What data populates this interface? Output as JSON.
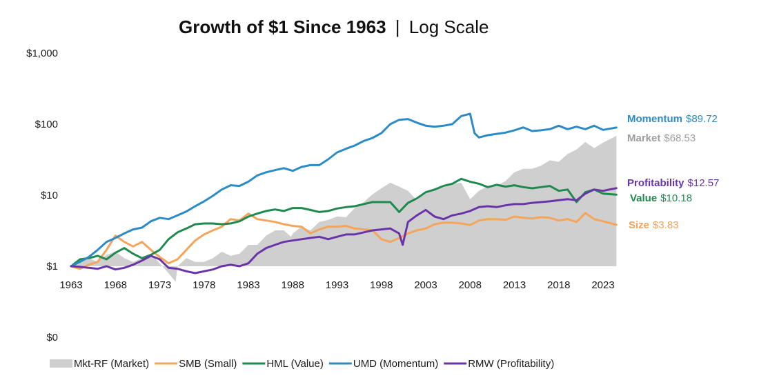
{
  "chart_data": {
    "type": "line",
    "title": "Growth of $1 Since 1963",
    "subtitle": "Log Scale",
    "title_separator": "|",
    "xlabel": "",
    "ylabel": "",
    "yscale": "log",
    "ylim": [
      1,
      1000
    ],
    "xlim": [
      1963,
      2024.5
    ],
    "y_ticks": [
      {
        "value": 1000,
        "label": "$1,000"
      },
      {
        "value": 100,
        "label": "$100"
      },
      {
        "value": 10,
        "label": "$10"
      },
      {
        "value": 1,
        "label": "$1"
      },
      {
        "value": 0,
        "label": "$0"
      }
    ],
    "x_ticks": [
      "1963",
      "1968",
      "1973",
      "1978",
      "1983",
      "1988",
      "1993",
      "1998",
      "2003",
      "2008",
      "2013",
      "2018",
      "2023"
    ],
    "grid": false,
    "legend_position": "bottom",
    "series": [
      {
        "key": "market",
        "name": "Mkt-RF (Market)",
        "short_name": "Market",
        "kind": "area",
        "color": "#cfcfcf",
        "label_color": "#9e9e9e",
        "end_value": "$68.53",
        "x": [
          1963,
          1964,
          1965,
          1966,
          1967,
          1968,
          1969,
          1970,
          1971,
          1972,
          1973,
          1974,
          1974.8,
          1975,
          1976,
          1977,
          1978,
          1979,
          1980,
          1981,
          1982,
          1983,
          1984,
          1985,
          1986,
          1987,
          1987.8,
          1988,
          1989,
          1990,
          1991,
          1992,
          1993,
          1994,
          1995,
          1996,
          1997,
          1998,
          1999,
          2000,
          2001,
          2002,
          2003,
          2004,
          2005,
          2006,
          2007,
          2008,
          2009,
          2010,
          2011,
          2012,
          2013,
          2014,
          2015,
          2016,
          2017,
          2018,
          2019,
          2020,
          2021,
          2022,
          2023,
          2024.5
        ],
        "values": [
          1.0,
          1.15,
          1.3,
          1.15,
          1.45,
          1.6,
          1.3,
          1.15,
          1.3,
          1.5,
          1.1,
          0.8,
          0.6,
          1.0,
          1.3,
          1.15,
          1.15,
          1.3,
          1.6,
          1.4,
          1.5,
          2.0,
          2.0,
          2.7,
          3.2,
          3.2,
          2.6,
          2.9,
          3.6,
          3.2,
          4.2,
          4.5,
          5.0,
          4.9,
          6.6,
          8.0,
          10.3,
          12.5,
          15.0,
          13.2,
          11.5,
          8.5,
          11.0,
          12.2,
          12.8,
          14.5,
          15.0,
          8.8,
          11.5,
          13.5,
          13.5,
          15.8,
          21.0,
          23.5,
          23.5,
          26.0,
          31.0,
          29.5,
          38.0,
          44.0,
          56.0,
          46.0,
          55.0,
          68.53
        ]
      },
      {
        "key": "size",
        "name": "SMB (Small)",
        "short_name": "Size",
        "kind": "line",
        "color": "#f5a55a",
        "label_color": "#f3a35c",
        "end_value": "$3.83",
        "x": [
          1963,
          1964,
          1965,
          1966,
          1967,
          1968,
          1969,
          1970,
          1971,
          1972,
          1973,
          1974,
          1975,
          1976,
          1977,
          1978,
          1979,
          1980,
          1981,
          1982,
          1983,
          1984,
          1985,
          1986,
          1987,
          1988,
          1989,
          1990,
          1991,
          1992,
          1993,
          1994,
          1995,
          1996,
          1997,
          1998,
          1999,
          2000,
          2001,
          2002,
          2003,
          2004,
          2005,
          2006,
          2007,
          2008,
          2009,
          2010,
          2011,
          2012,
          2013,
          2014,
          2015,
          2016,
          2017,
          2018,
          2019,
          2020,
          2021,
          2022,
          2023,
          2024.5
        ],
        "values": [
          1.0,
          0.92,
          1.05,
          1.15,
          1.7,
          2.7,
          2.2,
          1.9,
          2.2,
          1.7,
          1.35,
          1.1,
          1.25,
          1.7,
          2.3,
          2.8,
          3.2,
          3.6,
          4.6,
          4.4,
          5.5,
          4.6,
          4.4,
          4.2,
          3.9,
          3.7,
          3.6,
          2.9,
          3.3,
          3.6,
          3.6,
          3.7,
          3.4,
          3.3,
          3.2,
          2.4,
          2.2,
          2.5,
          2.9,
          3.2,
          3.4,
          3.9,
          4.1,
          4.1,
          4.0,
          3.8,
          4.4,
          4.6,
          4.6,
          4.5,
          5.0,
          4.8,
          4.7,
          4.9,
          4.8,
          4.4,
          4.6,
          4.2,
          5.6,
          4.6,
          4.3,
          3.83
        ]
      },
      {
        "key": "value",
        "name": "HML (Value)",
        "short_name": "Value",
        "kind": "line",
        "color": "#1e8a4e",
        "label_color": "#1e8a4e",
        "end_value": "$10.18",
        "x": [
          1963,
          1964,
          1965,
          1966,
          1967,
          1968,
          1969,
          1970,
          1971,
          1972,
          1973,
          1974,
          1975,
          1976,
          1977,
          1978,
          1979,
          1980,
          1981,
          1982,
          1983,
          1984,
          1985,
          1986,
          1987,
          1988,
          1989,
          1990,
          1991,
          1992,
          1993,
          1994,
          1995,
          1996,
          1997,
          1998,
          1999,
          2000,
          2001,
          2002,
          2003,
          2004,
          2005,
          2006,
          2007,
          2008,
          2009,
          2010,
          2011,
          2012,
          2013,
          2014,
          2015,
          2016,
          2017,
          2018,
          2019,
          2020,
          2021,
          2022,
          2023,
          2024.5
        ],
        "values": [
          1.0,
          1.25,
          1.3,
          1.4,
          1.25,
          1.55,
          1.8,
          1.5,
          1.3,
          1.45,
          1.7,
          2.4,
          3.0,
          3.4,
          3.9,
          4.0,
          4.0,
          3.9,
          4.0,
          4.3,
          5.0,
          5.5,
          6.0,
          6.3,
          6.0,
          6.6,
          6.6,
          6.2,
          5.8,
          6.0,
          6.5,
          6.8,
          7.0,
          7.5,
          8.0,
          8.0,
          8.0,
          5.8,
          7.8,
          9.0,
          11.0,
          12.0,
          13.5,
          14.5,
          17.0,
          15.5,
          14.5,
          13.0,
          14.0,
          13.2,
          13.8,
          13.0,
          12.5,
          13.0,
          13.5,
          11.5,
          12.0,
          8.0,
          11.0,
          12.0,
          10.5,
          10.18
        ]
      },
      {
        "key": "momentum",
        "name": "UMD (Momentum)",
        "short_name": "Momentum",
        "kind": "line",
        "color": "#2a8bc7",
        "label_color": "#2a8bc7",
        "end_value": "$89.72",
        "x": [
          1963,
          1964,
          1965,
          1966,
          1967,
          1968,
          1969,
          1970,
          1971,
          1972,
          1973,
          1974,
          1975,
          1976,
          1977,
          1978,
          1979,
          1980,
          1981,
          1982,
          1983,
          1984,
          1985,
          1986,
          1987,
          1988,
          1989,
          1990,
          1991,
          1992,
          1993,
          1994,
          1995,
          1996,
          1997,
          1998,
          1999,
          2000,
          2001,
          2002,
          2003,
          2004,
          2005,
          2006,
          2007,
          2008,
          2008.5,
          2009,
          2010,
          2011,
          2012,
          2013,
          2014,
          2015,
          2016,
          2017,
          2018,
          2019,
          2020,
          2021,
          2022,
          2023,
          2024.5
        ],
        "values": [
          1.0,
          1.15,
          1.35,
          1.7,
          2.2,
          2.5,
          2.9,
          3.3,
          3.5,
          4.3,
          4.8,
          4.6,
          5.2,
          5.9,
          7.0,
          8.2,
          9.8,
          12.0,
          13.8,
          13.5,
          15.5,
          19.0,
          21.0,
          22.5,
          24.0,
          22.0,
          25.0,
          26.5,
          26.5,
          32.0,
          40.0,
          45.0,
          50.0,
          58.0,
          64.0,
          75.0,
          100.0,
          115.0,
          118.0,
          105.0,
          95.0,
          92.0,
          95.0,
          100.0,
          130.0,
          140.0,
          75.0,
          65.0,
          70.0,
          73.0,
          76.0,
          82.0,
          90.0,
          80.0,
          82.0,
          85.0,
          95.0,
          85.0,
          92.0,
          85.0,
          95.0,
          83.0,
          89.72
        ]
      },
      {
        "key": "profitability",
        "name": "RMW (Profitability)",
        "short_name": "Profitability",
        "kind": "line",
        "color": "#6a34a8",
        "label_color": "#6a34a8",
        "end_value": "$12.57",
        "x": [
          1963,
          1964,
          1965,
          1966,
          1967,
          1968,
          1969,
          1970,
          1971,
          1972,
          1973,
          1974,
          1975,
          1976,
          1977,
          1978,
          1979,
          1980,
          1981,
          1982,
          1983,
          1984,
          1985,
          1986,
          1987,
          1988,
          1989,
          1990,
          1991,
          1992,
          1993,
          1994,
          1995,
          1996,
          1997,
          1998,
          1999,
          2000,
          2000.4,
          2001,
          2002,
          2003,
          2004,
          2005,
          2006,
          2007,
          2008,
          2009,
          2010,
          2011,
          2012,
          2013,
          2014,
          2015,
          2016,
          2017,
          2018,
          2019,
          2020,
          2021,
          2022,
          2023,
          2024.5
        ],
        "values": [
          1.0,
          0.98,
          0.95,
          0.92,
          1.0,
          0.9,
          0.95,
          1.05,
          1.2,
          1.4,
          1.25,
          0.95,
          0.92,
          0.85,
          0.8,
          0.85,
          0.9,
          1.0,
          1.05,
          1.0,
          1.1,
          1.5,
          1.8,
          2.0,
          2.2,
          2.3,
          2.4,
          2.5,
          2.6,
          2.4,
          2.6,
          2.8,
          2.8,
          3.0,
          3.2,
          3.3,
          3.4,
          2.9,
          2.0,
          4.2,
          5.2,
          6.2,
          5.0,
          4.6,
          5.2,
          5.5,
          6.0,
          6.8,
          7.0,
          6.8,
          7.2,
          7.5,
          7.5,
          7.8,
          8.0,
          8.2,
          8.5,
          8.8,
          8.5,
          10.5,
          12.0,
          11.5,
          12.57
        ]
      }
    ]
  },
  "legend": {
    "items": [
      "Mkt-RF (Market)",
      "SMB (Small)",
      "HML (Value)",
      "UMD (Momentum)",
      "RMW (Profitability)"
    ]
  }
}
